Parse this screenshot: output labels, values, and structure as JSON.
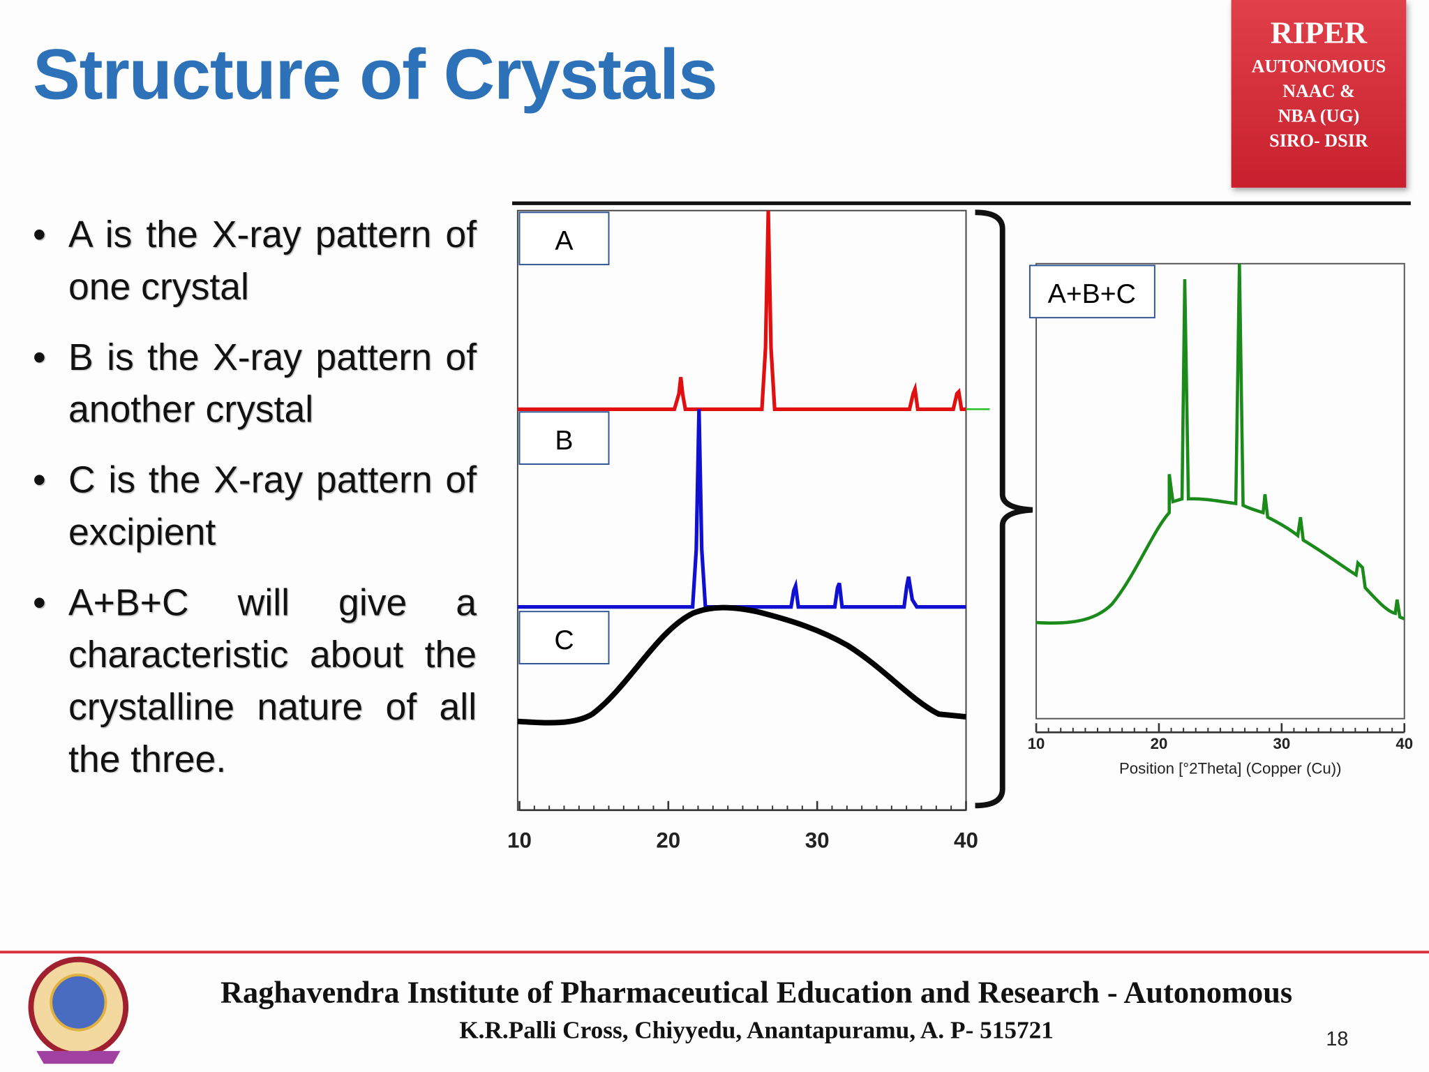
{
  "header": {
    "title": "Structure of Crystals",
    "badge": [
      "RIPER",
      "AUTONOMOUS",
      "NAAC &",
      "NBA (UG)",
      "SIRO- DSIR"
    ]
  },
  "bullets": [
    "A is the X-ray pattern of one crystal",
    "B is the X-ray pattern of another crystal",
    "C is the X-ray pattern of excipient",
    "A+B+C will give a characteristic about the crystalline nature of all the three."
  ],
  "figure": {
    "left_panel": {
      "labels": [
        "A",
        "B",
        "C"
      ],
      "xticks": [
        10,
        20,
        30,
        40
      ]
    },
    "right_panel": {
      "label": "A+B+C",
      "xticks": [
        10,
        20,
        30,
        40
      ],
      "xlabel": "Position [°2Theta] (Copper (Cu))"
    }
  },
  "footer": {
    "institute": "Raghavendra Institute of Pharmaceutical Education and Research - Autonomous",
    "address": "K.R.Palli Cross, Chiyyedu, Anantapuramu, A. P- 515721",
    "page": "18"
  }
}
